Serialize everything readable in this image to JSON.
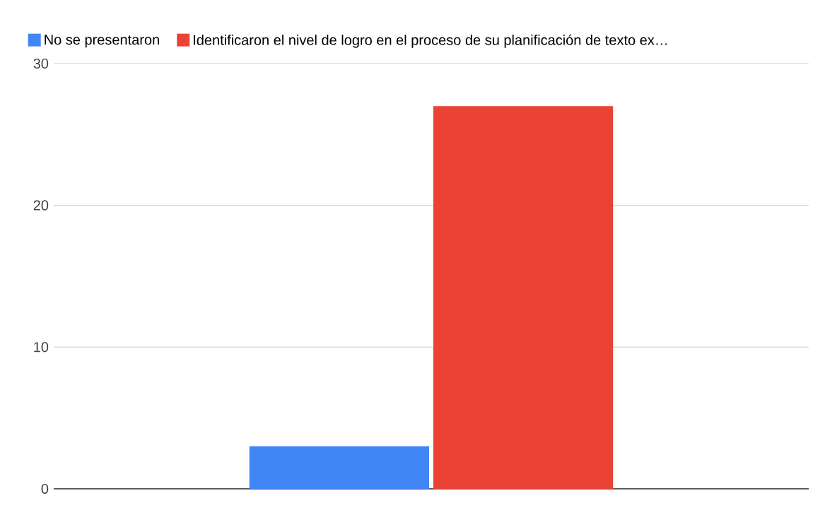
{
  "chart_data": {
    "type": "bar",
    "categories": [
      null
    ],
    "series": [
      {
        "name": "No se presentaron",
        "color": "#4285f4",
        "values": [
          3
        ]
      },
      {
        "name": "Identificaron el nivel de logro en el proceso de su planificación de texto ex…",
        "color": "#ea4335",
        "values": [
          27
        ]
      }
    ],
    "ylim": [
      0,
      30
    ],
    "yticks": [
      0,
      10,
      20,
      30
    ],
    "grid": "y",
    "legend": "top left"
  }
}
